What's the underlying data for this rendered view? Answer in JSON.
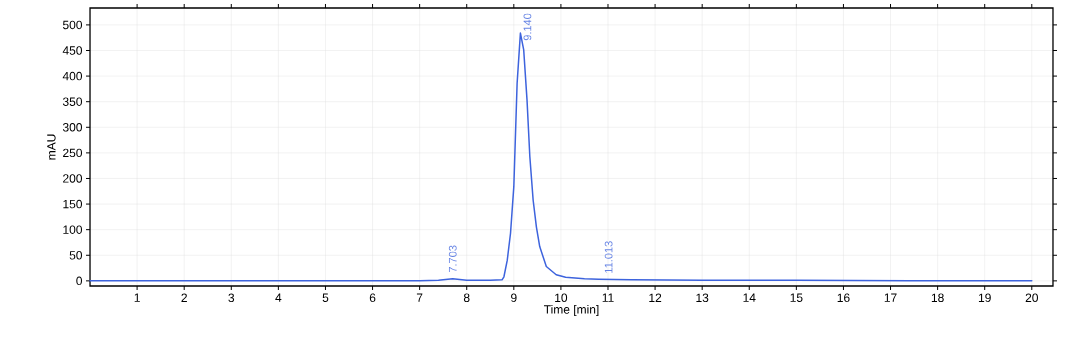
{
  "chart_data": {
    "type": "line",
    "xlabel": "Time [min]",
    "ylabel": "mAU",
    "xlim": [
      0,
      20.45
    ],
    "ylim": [
      -10,
      533
    ],
    "xticks": [
      1,
      2,
      3,
      4,
      5,
      6,
      7,
      8,
      9,
      10,
      11,
      12,
      13,
      14,
      15,
      16,
      17,
      18,
      19,
      20
    ],
    "yticks": [
      0,
      50,
      100,
      150,
      200,
      250,
      300,
      350,
      400,
      450,
      500
    ],
    "grid": true,
    "marker": "none",
    "line_style": "solid",
    "series": [
      {
        "color": "#3d63dd",
        "x": [
          0,
          2,
          4,
          6,
          7,
          7.4,
          7.6,
          7.703,
          7.8,
          8.0,
          8.5,
          8.75,
          8.79,
          8.86,
          8.93,
          9.0,
          9.07,
          9.14,
          9.21,
          9.28,
          9.34,
          9.41,
          9.48,
          9.55,
          9.69,
          9.9,
          10.1,
          10.5,
          10.8,
          11.5,
          13,
          15,
          17.4,
          20
        ],
        "values": [
          0,
          0,
          0,
          0,
          0,
          1,
          3,
          4,
          3,
          1,
          1,
          2,
          8,
          40,
          93,
          184,
          386,
          484,
          451,
          354,
          243,
          158,
          105,
          67,
          28,
          12,
          7,
          4,
          3,
          2,
          1,
          1,
          0,
          0
        ]
      }
    ],
    "annotations": [
      {
        "text": "7.703",
        "x": 7.703,
        "y": 4
      },
      {
        "text": "9.140",
        "x": 9.14,
        "y": 484
      },
      {
        "text": "11.013",
        "x": 11.013,
        "y": 2
      }
    ]
  }
}
